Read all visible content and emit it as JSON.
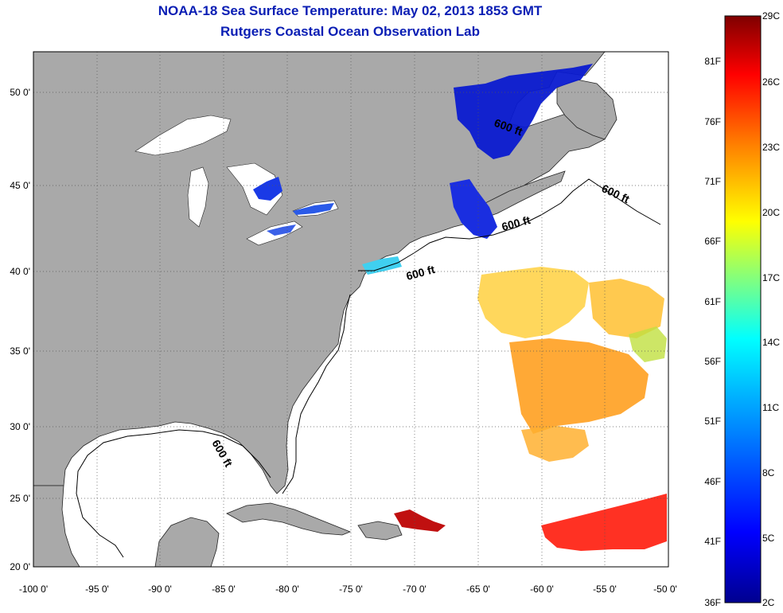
{
  "title": "NOAA-18 Sea Surface Temperature:  May 02, 2013 1853 GMT",
  "subtitle": "Rutgers Coastal Ocean Observation Lab",
  "map": {
    "lon_range": [
      -100,
      -50
    ],
    "lat_range": [
      20,
      52
    ],
    "land_color": "#a9a9a9",
    "grid": "dotted",
    "lon_ticks": [
      "-100 0'",
      "-95 0'",
      "-90 0'",
      "-85 0'",
      "-80 0'",
      "-75 0'",
      "-70 0'",
      "-65 0'",
      "-60 0'",
      "-55 0'",
      "-50 0'"
    ],
    "lat_ticks": [
      "50 0'",
      "45 0'",
      "40 0'",
      "35 0'",
      "30 0'",
      "25 0'",
      "20 0'"
    ],
    "contour_labels": [
      "600 ft",
      "600 ft",
      "600 ft",
      "600 ft",
      "600 ft"
    ]
  },
  "colorbar": {
    "celsius_labels": [
      "29C",
      "26C",
      "23C",
      "20C",
      "17C",
      "14C",
      "11C",
      "8C",
      "5C",
      "2C"
    ],
    "fahrenheit_labels": [
      "81F",
      "76F",
      "71F",
      "66F",
      "61F",
      "56F",
      "51F",
      "46F",
      "41F",
      "36F"
    ],
    "colors": [
      "#7f0000",
      "#ff0000",
      "#ff8000",
      "#ffff00",
      "#80ff80",
      "#00ffff",
      "#0080ff",
      "#0000ff",
      "#00008f"
    ]
  }
}
